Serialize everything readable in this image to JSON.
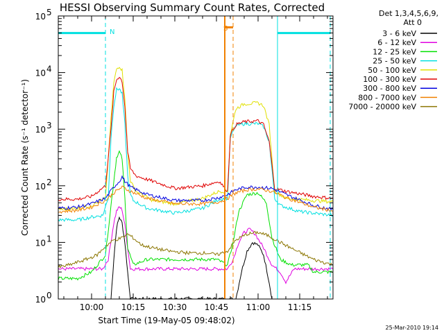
{
  "chart_data": {
    "type": "line",
    "title": "HESSI Observing Summary Count Rates, Corrected",
    "xlabel": "Start Time (19-May-05 09:48:02)",
    "ylabel": "Corrected Count Rate (s⁻¹ detector⁻¹)",
    "y_scale": "log",
    "xlim": [
      "09:48",
      "11:27"
    ],
    "ylim": [
      1,
      100000
    ],
    "x_ticks": [
      "10:00",
      "10:15",
      "10:30",
      "10:45",
      "11:00",
      "11:15"
    ],
    "y_ticks": [
      {
        "value": 1,
        "base": "10",
        "exp": "0"
      },
      {
        "value": 10,
        "base": "10",
        "exp": "1"
      },
      {
        "value": 100,
        "base": "10",
        "exp": "2"
      },
      {
        "value": 1000,
        "base": "10",
        "exp": "3"
      },
      {
        "value": 10000,
        "base": "10",
        "exp": "4"
      },
      {
        "value": 100000,
        "base": "10",
        "exp": "5"
      }
    ],
    "legend_header": [
      "Det 1,3,4,5,6,9,",
      "Att 0"
    ],
    "legend_position": "right",
    "series": [
      {
        "name": "3 - 6 keV",
        "color": "#000000",
        "points": [
          [
            "10:07",
            1
          ],
          [
            "10:08",
            5
          ],
          [
            "10:09",
            18
          ],
          [
            "10:10",
            28
          ],
          [
            "10:11",
            22
          ],
          [
            "10:12",
            10
          ],
          [
            "10:13",
            3
          ],
          [
            "10:14",
            1
          ],
          [
            "10:52",
            1
          ],
          [
            "10:54",
            3
          ],
          [
            "10:56",
            7
          ],
          [
            "10:58",
            10
          ],
          [
            "11:00",
            9
          ],
          [
            "11:02",
            6
          ],
          [
            "11:04",
            2
          ],
          [
            "11:05",
            1
          ]
        ]
      },
      {
        "name": "6 - 12 keV",
        "color": "#e000e0",
        "points": [
          [
            "09:48",
            3.4
          ],
          [
            "10:04",
            3.4
          ],
          [
            "10:06",
            5
          ],
          [
            "10:08",
            22
          ],
          [
            "10:09",
            36
          ],
          [
            "10:10",
            42
          ],
          [
            "10:11",
            38
          ],
          [
            "10:12",
            20
          ],
          [
            "10:13",
            8
          ],
          [
            "10:14",
            3.4
          ],
          [
            "10:45",
            3.4
          ],
          [
            "10:49",
            3.4
          ],
          [
            "10:51",
            5
          ],
          [
            "10:53",
            10
          ],
          [
            "10:55",
            15
          ],
          [
            "10:57",
            17
          ],
          [
            "10:59",
            14
          ],
          [
            "11:02",
            8
          ],
          [
            "11:05",
            4
          ],
          [
            "11:08",
            3
          ],
          [
            "11:10",
            2
          ],
          [
            "11:13",
            3.4
          ],
          [
            "11:27",
            3.4
          ]
        ]
      },
      {
        "name": "12 - 25 keV",
        "color": "#00e000",
        "points": [
          [
            "09:48",
            2.3
          ],
          [
            "09:55",
            2.3
          ],
          [
            "10:00",
            3
          ],
          [
            "10:05",
            6
          ],
          [
            "10:07",
            45
          ],
          [
            "10:08",
            120
          ],
          [
            "10:09",
            320
          ],
          [
            "10:10",
            400
          ],
          [
            "10:11",
            300
          ],
          [
            "10:12",
            60
          ],
          [
            "10:13",
            8
          ],
          [
            "10:15",
            4
          ],
          [
            "10:20",
            5
          ],
          [
            "10:30",
            5
          ],
          [
            "10:40",
            5
          ],
          [
            "10:45",
            5
          ],
          [
            "10:49",
            4
          ],
          [
            "10:51",
            10
          ],
          [
            "10:53",
            35
          ],
          [
            "10:56",
            70
          ],
          [
            "11:00",
            75
          ],
          [
            "11:03",
            50
          ],
          [
            "11:05",
            12
          ],
          [
            "11:08",
            5
          ],
          [
            "11:12",
            4
          ],
          [
            "11:18",
            4
          ],
          [
            "11:20",
            3
          ],
          [
            "11:27",
            3
          ]
        ]
      },
      {
        "name": "25 - 50 keV",
        "color": "#00e0e0",
        "points": [
          [
            "09:48",
            25
          ],
          [
            "09:55",
            25
          ],
          [
            "10:00",
            28
          ],
          [
            "10:04",
            30
          ],
          [
            "10:06",
            60
          ],
          [
            "10:07",
            700
          ],
          [
            "10:08",
            2600
          ],
          [
            "10:09",
            5000
          ],
          [
            "10:10",
            5200
          ],
          [
            "10:11",
            4200
          ],
          [
            "10:12",
            1200
          ],
          [
            "10:13",
            150
          ],
          [
            "10:14",
            70
          ],
          [
            "10:15",
            55
          ],
          [
            "10:20",
            40
          ],
          [
            "10:30",
            33
          ],
          [
            "10:40",
            40
          ],
          [
            "10:46",
            58
          ],
          [
            "10:49",
            60
          ],
          [
            "10:50",
            700
          ],
          [
            "10:52",
            1150
          ],
          [
            "10:55",
            1250
          ],
          [
            "11:00",
            1250
          ],
          [
            "11:02",
            1100
          ],
          [
            "11:04",
            600
          ],
          [
            "11:06",
            60
          ],
          [
            "11:08",
            45
          ],
          [
            "11:15",
            35
          ],
          [
            "11:22",
            32
          ],
          [
            "11:27",
            30
          ]
        ]
      },
      {
        "name": "50 - 100 keV",
        "color": "#e0e000",
        "points": [
          [
            "09:48",
            38
          ],
          [
            "09:55",
            40
          ],
          [
            "10:00",
            45
          ],
          [
            "10:05",
            60
          ],
          [
            "10:07",
            1500
          ],
          [
            "10:08",
            6500
          ],
          [
            "10:09",
            11500
          ],
          [
            "10:10",
            13000
          ],
          [
            "10:11",
            11000
          ],
          [
            "10:12",
            3500
          ],
          [
            "10:13",
            400
          ],
          [
            "10:14",
            120
          ],
          [
            "10:16",
            80
          ],
          [
            "10:22",
            55
          ],
          [
            "10:30",
            48
          ],
          [
            "10:40",
            60
          ],
          [
            "10:46",
            80
          ],
          [
            "10:49",
            80
          ],
          [
            "10:50",
            800
          ],
          [
            "10:52",
            2300
          ],
          [
            "10:55",
            2800
          ],
          [
            "11:00",
            2900
          ],
          [
            "11:02",
            2600
          ],
          [
            "11:04",
            1200
          ],
          [
            "11:06",
            80
          ],
          [
            "11:10",
            60
          ],
          [
            "11:20",
            55
          ],
          [
            "11:27",
            52
          ]
        ]
      },
      {
        "name": "100 - 300 keV",
        "color": "#e00000",
        "points": [
          [
            "09:48",
            58
          ],
          [
            "09:55",
            58
          ],
          [
            "10:00",
            65
          ],
          [
            "10:05",
            100
          ],
          [
            "10:07",
            1000
          ],
          [
            "10:08",
            4500
          ],
          [
            "10:09",
            7500
          ],
          [
            "10:10",
            8500
          ],
          [
            "10:11",
            7000
          ],
          [
            "10:12",
            2500
          ],
          [
            "10:13",
            400
          ],
          [
            "10:14",
            200
          ],
          [
            "10:16",
            150
          ],
          [
            "10:22",
            120
          ],
          [
            "10:30",
            90
          ],
          [
            "10:40",
            100
          ],
          [
            "10:46",
            120
          ],
          [
            "10:49",
            80
          ],
          [
            "10:50",
            800
          ],
          [
            "10:52",
            1200
          ],
          [
            "10:55",
            1350
          ],
          [
            "11:00",
            1400
          ],
          [
            "11:02",
            1200
          ],
          [
            "11:04",
            600
          ],
          [
            "11:06",
            90
          ],
          [
            "11:10",
            80
          ],
          [
            "11:20",
            65
          ],
          [
            "11:27",
            60
          ]
        ]
      },
      {
        "name": "300 - 800 keV",
        "color": "#0000e0",
        "points": [
          [
            "09:48",
            40
          ],
          [
            "09:55",
            42
          ],
          [
            "10:00",
            48
          ],
          [
            "10:05",
            60
          ],
          [
            "10:08",
            95
          ],
          [
            "10:10",
            120
          ],
          [
            "10:11",
            145
          ],
          [
            "10:12",
            120
          ],
          [
            "10:14",
            95
          ],
          [
            "10:20",
            70
          ],
          [
            "10:30",
            55
          ],
          [
            "10:40",
            55
          ],
          [
            "10:46",
            62
          ],
          [
            "10:49",
            70
          ],
          [
            "10:52",
            85
          ],
          [
            "10:56",
            95
          ],
          [
            "11:00",
            95
          ],
          [
            "11:05",
            90
          ],
          [
            "11:10",
            70
          ],
          [
            "11:20",
            45
          ],
          [
            "11:27",
            38
          ]
        ]
      },
      {
        "name": "800 - 7000 keV",
        "color": "#f08000",
        "points": [
          [
            "09:48",
            35
          ],
          [
            "09:55",
            37
          ],
          [
            "10:00",
            42
          ],
          [
            "10:05",
            55
          ],
          [
            "10:08",
            75
          ],
          [
            "10:11",
            95
          ],
          [
            "10:14",
            80
          ],
          [
            "10:20",
            60
          ],
          [
            "10:30",
            48
          ],
          [
            "10:40",
            48
          ],
          [
            "10:46",
            52
          ],
          [
            "10:49",
            60
          ],
          [
            "10:52",
            75
          ],
          [
            "10:56",
            85
          ],
          [
            "11:00",
            88
          ],
          [
            "11:05",
            80
          ],
          [
            "11:10",
            62
          ],
          [
            "11:20",
            42
          ],
          [
            "11:27",
            36
          ]
        ]
      },
      {
        "name": "7000 - 20000 keV",
        "color": "#8b7500",
        "points": [
          [
            "09:48",
            3.6
          ],
          [
            "09:52",
            4
          ],
          [
            "09:58",
            5
          ],
          [
            "10:02",
            6
          ],
          [
            "10:05",
            8.5
          ],
          [
            "10:08",
            11
          ],
          [
            "10:11",
            12
          ],
          [
            "10:13",
            14
          ],
          [
            "10:15",
            12
          ],
          [
            "10:18",
            9
          ],
          [
            "10:22",
            8
          ],
          [
            "10:28",
            7
          ],
          [
            "10:35",
            6.5
          ],
          [
            "10:42",
            6.5
          ],
          [
            "10:45",
            6
          ],
          [
            "10:49",
            7
          ],
          [
            "10:52",
            11
          ],
          [
            "10:56",
            14
          ],
          [
            "11:00",
            15
          ],
          [
            "11:04",
            13
          ],
          [
            "11:08",
            10
          ],
          [
            "11:14",
            7
          ],
          [
            "11:20",
            5
          ],
          [
            "11:27",
            4
          ]
        ]
      }
    ],
    "markers": [
      {
        "label": "N",
        "color": "#00e0e0",
        "segments": [
          [
            "09:48",
            "10:05",
            50000
          ],
          [
            "11:07",
            "11:26",
            50000
          ]
        ],
        "dashed_at": [
          "10:05",
          "11:26"
        ],
        "solid_at": [
          "11:07"
        ]
      },
      {
        "label": "S",
        "color": "#f08000",
        "segments": [
          [
            "10:48",
            "10:51",
            63000
          ]
        ],
        "dashed_at": [
          "10:51"
        ],
        "solid_at": [
          "10:48"
        ]
      }
    ],
    "grid": false
  },
  "footer": {
    "stamp": "25-Mar-2010 19:14"
  }
}
